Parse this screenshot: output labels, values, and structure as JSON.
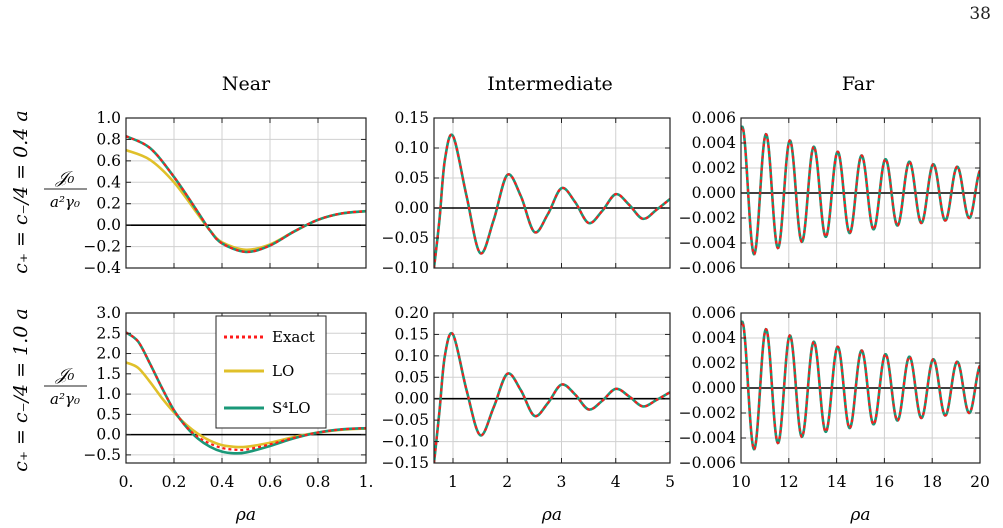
{
  "page_number": "38",
  "columns": [
    "Near",
    "Intermediate",
    "Far"
  ],
  "rows": [
    {
      "param_label": "c₊ = c₋/4 = 0.4 a",
      "quantity_num": "𝒥₀",
      "quantity_den": "a²γ₀"
    },
    {
      "param_label": "c₊ = c₋/4 = 1.0 a",
      "quantity_num": "𝒥₀",
      "quantity_den": "a²γ₀"
    }
  ],
  "colors": {
    "exact": "#ff1a1a",
    "lo": "#e0c02a",
    "s4lo": "#1a9878",
    "zero_line": "#000000",
    "grid": "#d0d0d0"
  },
  "legend": {
    "items": [
      {
        "label": "Exact",
        "style": "dotted",
        "color": "#ff1a1a"
      },
      {
        "label": "LO",
        "style": "solid",
        "color": "#e0c02a"
      },
      {
        "label": "S⁴LO",
        "style": "solid",
        "color": "#1a9878"
      }
    ]
  },
  "chart_data": [
    {
      "type": "line",
      "row": 0,
      "col": 0,
      "title": "Near",
      "xlabel": "",
      "ylabel": "",
      "xlim": [
        0,
        1
      ],
      "ylim": [
        -0.4,
        1.0
      ],
      "xticks": [
        0,
        0.2,
        0.4,
        0.6,
        0.8,
        1.0
      ],
      "xticklabels": [],
      "yticks": [
        -0.4,
        -0.2,
        0,
        0.2,
        0.4,
        0.6,
        0.8,
        1.0
      ],
      "yticklabels": [
        "−0.4",
        "−0.2",
        "0.0",
        "0.2",
        "0.4",
        "0.6",
        "0.8",
        "1.0"
      ],
      "series": [
        {
          "key": "lo",
          "x": [
            0,
            0.1,
            0.2,
            0.3,
            0.35,
            0.4,
            0.5,
            0.6,
            0.7,
            0.8,
            0.9,
            1.0
          ],
          "y": [
            0.7,
            0.61,
            0.4,
            0.1,
            -0.05,
            -0.16,
            -0.23,
            -0.18,
            -0.06,
            0.05,
            0.11,
            0.13
          ]
        },
        {
          "key": "s4lo",
          "x": [
            0,
            0.1,
            0.2,
            0.3,
            0.35,
            0.4,
            0.5,
            0.6,
            0.7,
            0.8,
            0.9,
            1.0
          ],
          "y": [
            0.83,
            0.72,
            0.45,
            0.12,
            -0.05,
            -0.17,
            -0.25,
            -0.19,
            -0.06,
            0.05,
            0.11,
            0.13
          ]
        },
        {
          "key": "exact",
          "x": [
            0,
            0.1,
            0.2,
            0.3,
            0.35,
            0.4,
            0.5,
            0.6,
            0.7,
            0.8,
            0.9,
            1.0
          ],
          "y": [
            0.83,
            0.72,
            0.45,
            0.12,
            -0.05,
            -0.17,
            -0.25,
            -0.19,
            -0.06,
            0.05,
            0.11,
            0.13
          ]
        }
      ]
    },
    {
      "type": "line",
      "row": 0,
      "col": 1,
      "title": "Intermediate",
      "xlabel": "",
      "ylabel": "",
      "xlim": [
        0.65,
        5
      ],
      "ylim": [
        -0.1,
        0.15
      ],
      "xticks": [
        1,
        2,
        3,
        4,
        5
      ],
      "xticklabels": [],
      "yticks": [
        -0.1,
        -0.05,
        0,
        0.05,
        0.1,
        0.15
      ],
      "yticklabels": [
        "−0.10",
        "−0.05",
        "0.00",
        "0.05",
        "0.10",
        "0.15"
      ],
      "series": [
        {
          "key": "s4lo",
          "x": [
            0.65,
            0.75,
            0.85,
            1.0,
            1.25,
            1.5,
            1.75,
            2.0,
            2.25,
            2.5,
            2.75,
            3.0,
            3.25,
            3.5,
            3.75,
            4.0,
            4.25,
            4.5,
            4.75,
            5.0
          ],
          "y": [
            -0.1,
            -0.02,
            0.08,
            0.12,
            0.02,
            -0.075,
            -0.02,
            0.055,
            0.02,
            -0.04,
            -0.01,
            0.033,
            0.01,
            -0.025,
            -0.005,
            0.023,
            0.005,
            -0.018,
            -0.003,
            0.015
          ]
        },
        {
          "key": "exact",
          "x": [
            0.65,
            0.75,
            0.85,
            1.0,
            1.25,
            1.5,
            1.75,
            2.0,
            2.25,
            2.5,
            2.75,
            3.0,
            3.25,
            3.5,
            3.75,
            4.0,
            4.25,
            4.5,
            4.75,
            5.0
          ],
          "y": [
            -0.1,
            -0.02,
            0.08,
            0.12,
            0.02,
            -0.075,
            -0.02,
            0.055,
            0.02,
            -0.04,
            -0.01,
            0.033,
            0.01,
            -0.025,
            -0.005,
            0.023,
            0.005,
            -0.018,
            -0.003,
            0.015
          ]
        }
      ]
    },
    {
      "type": "line",
      "row": 0,
      "col": 2,
      "title": "Far",
      "xlabel": "",
      "ylabel": "",
      "xlim": [
        10,
        20
      ],
      "ylim": [
        -0.006,
        0.006
      ],
      "xticks": [
        10,
        12,
        14,
        16,
        18,
        20
      ],
      "xticklabels": [],
      "yticks": [
        -0.006,
        -0.004,
        -0.002,
        0,
        0.002,
        0.004,
        0.006
      ],
      "yticklabels": [
        "−0.006",
        "−0.004",
        "−0.002",
        "0.000",
        "0.002",
        "0.004",
        "0.006"
      ],
      "oscillation": {
        "x_start": 10,
        "x_end": 20,
        "first_peak_x": 10.05,
        "period": 1.0,
        "peak_values": [
          0.0053,
          0.0047,
          0.0042,
          0.0037,
          0.0033,
          0.003,
          0.0027,
          0.0025,
          0.0023,
          0.0021,
          0.0019
        ],
        "trough_values": [
          -0.0049,
          -0.0044,
          -0.0039,
          -0.0035,
          -0.0032,
          -0.0029,
          -0.0026,
          -0.0024,
          -0.0022,
          -0.002
        ]
      },
      "series": [
        {
          "key": "s4lo"
        },
        {
          "key": "exact"
        }
      ]
    },
    {
      "type": "line",
      "row": 1,
      "col": 0,
      "title": "",
      "xlabel": "ρa",
      "ylabel": "",
      "xlim": [
        0,
        1
      ],
      "ylim": [
        -0.7,
        3.0
      ],
      "xticks": [
        0,
        0.2,
        0.4,
        0.6,
        0.8,
        1.0
      ],
      "xticklabels": [
        "0.",
        "0.2",
        "0.4",
        "0.6",
        "0.8",
        "1."
      ],
      "yticks": [
        -0.5,
        0,
        0.5,
        1.0,
        1.5,
        2.0,
        2.5,
        3.0
      ],
      "yticklabels": [
        "−0.5",
        "0.0",
        "0.5",
        "1.0",
        "1.5",
        "2.0",
        "2.5",
        "3.0"
      ],
      "series": [
        {
          "key": "lo",
          "x": [
            0,
            0.05,
            0.1,
            0.15,
            0.2,
            0.25,
            0.3,
            0.35,
            0.4,
            0.45,
            0.5,
            0.6,
            0.7,
            0.8,
            0.9,
            1.0
          ],
          "y": [
            1.78,
            1.65,
            1.3,
            0.9,
            0.55,
            0.25,
            0.02,
            -0.15,
            -0.26,
            -0.3,
            -0.3,
            -0.2,
            -0.06,
            0.05,
            0.12,
            0.15
          ]
        },
        {
          "key": "s4lo",
          "x": [
            0,
            0.05,
            0.1,
            0.15,
            0.2,
            0.25,
            0.3,
            0.35,
            0.4,
            0.45,
            0.5,
            0.6,
            0.7,
            0.8,
            0.9,
            1.0
          ],
          "y": [
            2.52,
            2.3,
            1.75,
            1.15,
            0.6,
            0.2,
            -0.1,
            -0.3,
            -0.42,
            -0.46,
            -0.44,
            -0.28,
            -0.09,
            0.05,
            0.13,
            0.16
          ]
        },
        {
          "key": "exact",
          "x": [
            0,
            0.05,
            0.1,
            0.15,
            0.2,
            0.25,
            0.3,
            0.35,
            0.4,
            0.45,
            0.5,
            0.6,
            0.7,
            0.8,
            0.9,
            1.0
          ],
          "y": [
            2.52,
            2.3,
            1.75,
            1.15,
            0.6,
            0.2,
            -0.06,
            -0.22,
            -0.33,
            -0.37,
            -0.37,
            -0.24,
            -0.08,
            0.05,
            0.13,
            0.16
          ]
        }
      ]
    },
    {
      "type": "line",
      "row": 1,
      "col": 1,
      "title": "",
      "xlabel": "ρa",
      "ylabel": "",
      "xlim": [
        0.65,
        5
      ],
      "ylim": [
        -0.15,
        0.2
      ],
      "xticks": [
        1,
        2,
        3,
        4,
        5
      ],
      "xticklabels": [
        "1",
        "2",
        "3",
        "4",
        "5"
      ],
      "yticks": [
        -0.15,
        -0.1,
        -0.05,
        0,
        0.05,
        0.1,
        0.15,
        0.2
      ],
      "yticklabels": [
        "−0.15",
        "−0.10",
        "−0.05",
        "0.00",
        "0.05",
        "0.10",
        "0.15",
        "0.20"
      ],
      "series": [
        {
          "key": "s4lo",
          "x": [
            0.65,
            0.75,
            0.85,
            1.0,
            1.25,
            1.5,
            1.75,
            2.0,
            2.25,
            2.5,
            2.75,
            3.0,
            3.25,
            3.5,
            3.75,
            4.0,
            4.25,
            4.5,
            4.75,
            5.0
          ],
          "y": [
            -0.15,
            -0.03,
            0.1,
            0.15,
            0.02,
            -0.085,
            -0.02,
            0.058,
            0.02,
            -0.04,
            -0.01,
            0.033,
            0.01,
            -0.025,
            -0.005,
            0.023,
            0.005,
            -0.018,
            -0.003,
            0.015
          ]
        },
        {
          "key": "exact",
          "x": [
            0.65,
            0.75,
            0.85,
            1.0,
            1.25,
            1.5,
            1.75,
            2.0,
            2.25,
            2.5,
            2.75,
            3.0,
            3.25,
            3.5,
            3.75,
            4.0,
            4.25,
            4.5,
            4.75,
            5.0
          ],
          "y": [
            -0.15,
            -0.03,
            0.1,
            0.15,
            0.02,
            -0.085,
            -0.02,
            0.058,
            0.02,
            -0.04,
            -0.01,
            0.033,
            0.01,
            -0.025,
            -0.005,
            0.023,
            0.005,
            -0.018,
            -0.003,
            0.015
          ]
        }
      ]
    },
    {
      "type": "line",
      "row": 1,
      "col": 2,
      "title": "",
      "xlabel": "ρa",
      "ylabel": "",
      "xlim": [
        10,
        20
      ],
      "ylim": [
        -0.006,
        0.006
      ],
      "xticks": [
        10,
        12,
        14,
        16,
        18,
        20
      ],
      "xticklabels": [
        "10",
        "12",
        "14",
        "16",
        "18",
        "20"
      ],
      "yticks": [
        -0.006,
        -0.004,
        -0.002,
        0,
        0.002,
        0.004,
        0.006
      ],
      "yticklabels": [
        "−0.006",
        "−0.004",
        "−0.002",
        "0.000",
        "0.002",
        "0.004",
        "0.006"
      ],
      "oscillation": {
        "x_start": 10,
        "x_end": 20,
        "first_peak_x": 10.05,
        "period": 1.0,
        "peak_values": [
          0.0053,
          0.0047,
          0.0042,
          0.0037,
          0.0033,
          0.003,
          0.0027,
          0.0025,
          0.0023,
          0.0021,
          0.0019
        ],
        "trough_values": [
          -0.0049,
          -0.0044,
          -0.0039,
          -0.0035,
          -0.0032,
          -0.0029,
          -0.0026,
          -0.0024,
          -0.0022,
          -0.002
        ]
      },
      "series": [
        {
          "key": "s4lo"
        },
        {
          "key": "exact"
        }
      ]
    }
  ]
}
